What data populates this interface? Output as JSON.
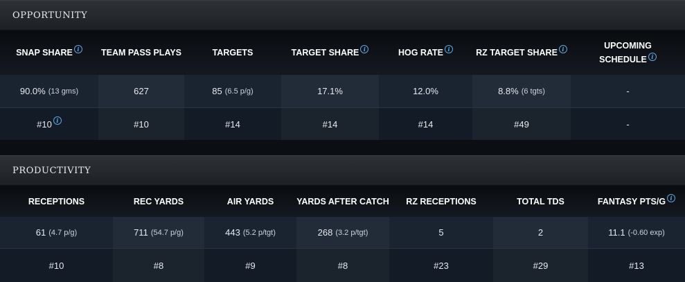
{
  "opportunity": {
    "title": "OPPORTUNITY",
    "headers": [
      {
        "label": "SNAP SHARE",
        "info": true
      },
      {
        "label": "TEAM PASS PLAYS",
        "info": false
      },
      {
        "label": "TARGETS",
        "info": false
      },
      {
        "label": "TARGET SHARE",
        "info": true
      },
      {
        "label": "HOG RATE",
        "info": true
      },
      {
        "label": "RZ TARGET SHARE",
        "info": true
      },
      {
        "label": "UPCOMING",
        "label2": "SCHEDULE",
        "info": true
      }
    ],
    "values": [
      {
        "main": "90.0%",
        "sub": "(13 gms)"
      },
      {
        "main": "627",
        "sub": ""
      },
      {
        "main": "85",
        "sub": "(6.5 p/g)"
      },
      {
        "main": "17.1%",
        "sub": ""
      },
      {
        "main": "12.0%",
        "sub": ""
      },
      {
        "main": "8.8%",
        "sub": "(6 tgts)"
      },
      {
        "main": "-",
        "sub": ""
      }
    ],
    "ranks": [
      "#10",
      "#10",
      "#14",
      "#14",
      "#14",
      "#49",
      "-"
    ]
  },
  "productivity": {
    "title": "PRODUCTIVITY",
    "headers": [
      {
        "label": "RECEPTIONS",
        "info": false
      },
      {
        "label": "REC YARDS",
        "info": false
      },
      {
        "label": "AIR YARDS",
        "info": false
      },
      {
        "label": "YARDS AFTER CATCH",
        "info": false
      },
      {
        "label": "RZ RECEPTIONS",
        "info": false
      },
      {
        "label": "TOTAL TDS",
        "info": false
      },
      {
        "label": "FANTASY PTS/G",
        "info": true
      }
    ],
    "values": [
      {
        "main": "61",
        "sub": "(4.7 p/g)"
      },
      {
        "main": "711",
        "sub": "(54.7 p/g)"
      },
      {
        "main": "443",
        "sub": "(5.2 p/tgt)"
      },
      {
        "main": "268",
        "sub": "(3.2 p/tgt)"
      },
      {
        "main": "5",
        "sub": ""
      },
      {
        "main": "2",
        "sub": ""
      },
      {
        "main": "11.1",
        "sub": "(-0.60 exp)"
      }
    ],
    "ranks": [
      "#10",
      "#8",
      "#9",
      "#8",
      "#23",
      "#29",
      "#13"
    ]
  },
  "info_glyph": "i",
  "colors": {
    "info": "#5aa9e6",
    "row_a": "#1a2431",
    "row_b": "#131b26"
  }
}
